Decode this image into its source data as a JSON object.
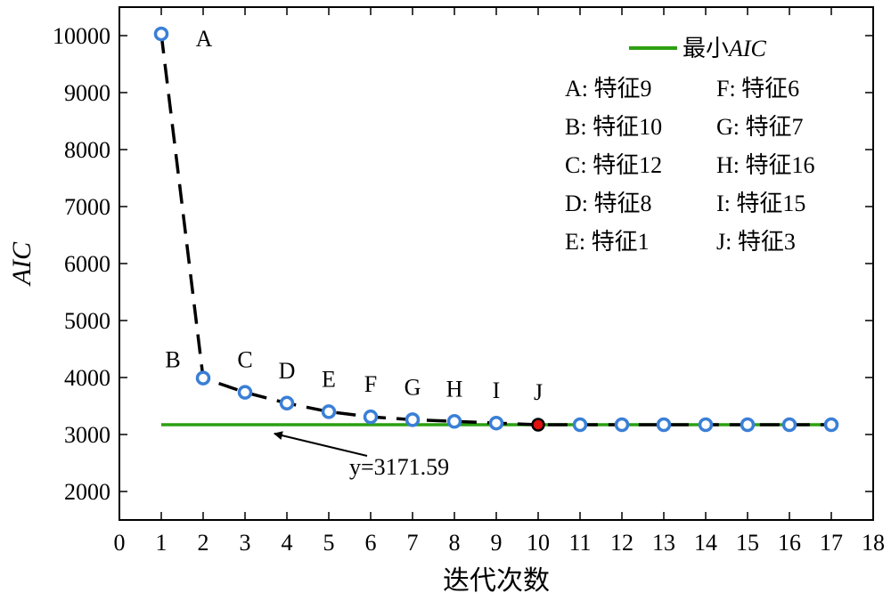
{
  "chart_data": {
    "type": "line",
    "xlabel": "迭代次数",
    "ylabel": "AIC",
    "xlim": [
      0,
      18
    ],
    "ylim": [
      1500,
      10500
    ],
    "x_ticks": [
      0,
      1,
      2,
      3,
      4,
      5,
      6,
      7,
      8,
      9,
      10,
      11,
      12,
      13,
      14,
      15,
      16,
      17,
      18
    ],
    "y_ticks": [
      2000,
      3000,
      4000,
      5000,
      6000,
      7000,
      8000,
      9000,
      10000
    ],
    "grid": false,
    "legend_position": "top-right",
    "series": [
      {
        "x": [
          1,
          2,
          3,
          4,
          5,
          6,
          7,
          8,
          9,
          10,
          11,
          12,
          13,
          14,
          15,
          16,
          17
        ],
        "y": [
          10030,
          3990,
          3740,
          3550,
          3400,
          3310,
          3260,
          3230,
          3200,
          3171.59,
          3171.59,
          3171.59,
          3171.59,
          3171.59,
          3171.59,
          3171.59,
          3171.59
        ],
        "line_color": "#000000",
        "marker_color": "#3a7fd6"
      }
    ],
    "reference_line": {
      "name": "最小AIC",
      "name_plain": "最小",
      "name_italic": "AIC",
      "y": 3171.59,
      "x_range": [
        1,
        17
      ],
      "color": "#2ca012"
    },
    "highlight_point": {
      "x": 10,
      "y": 3171.59,
      "color": "#e01010"
    },
    "point_labels": [
      {
        "text": "A",
        "x": 1,
        "y": 10030
      },
      {
        "text": "B",
        "x": 2,
        "y": 3990
      },
      {
        "text": "C",
        "x": 3,
        "y": 3740
      },
      {
        "text": "D",
        "x": 4,
        "y": 3550
      },
      {
        "text": "E",
        "x": 5,
        "y": 3400
      },
      {
        "text": "F",
        "x": 6,
        "y": 3310
      },
      {
        "text": "G",
        "x": 7,
        "y": 3260
      },
      {
        "text": "H",
        "x": 8,
        "y": 3230
      },
      {
        "text": "I",
        "x": 9,
        "y": 3200
      },
      {
        "text": "J",
        "x": 10,
        "y": 3171.59
      }
    ],
    "legend_entries": [
      [
        "A: 特征9",
        "F: 特征6"
      ],
      [
        "B: 特征10",
        "G: 特征7"
      ],
      [
        "C: 特征12",
        "H: 特征16"
      ],
      [
        "D: 特征8",
        "I: 特征15"
      ],
      [
        "E: 特征1",
        "J: 特征3"
      ]
    ],
    "annotation": {
      "text": "y=3171.59",
      "points_to": {
        "x": 3.7,
        "y": 3171.59
      }
    }
  }
}
